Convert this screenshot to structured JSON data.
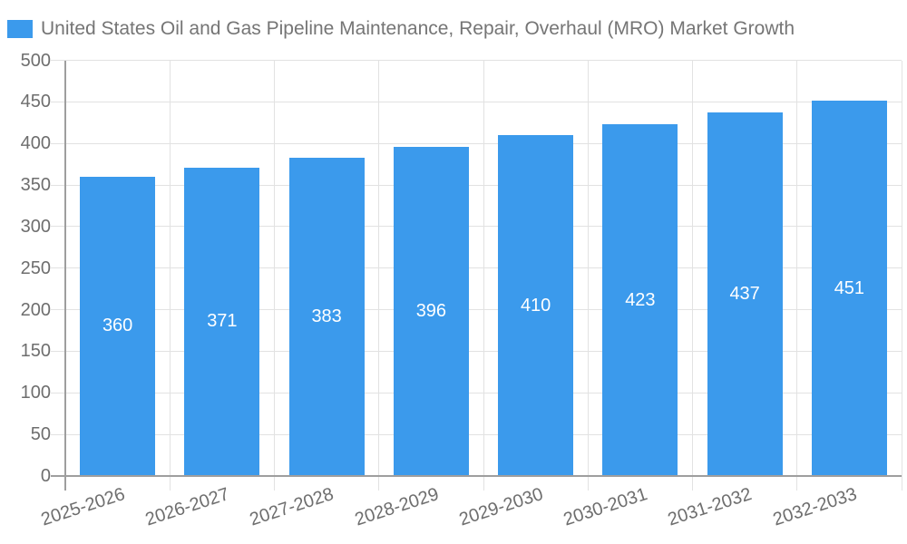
{
  "chart_data": {
    "type": "bar",
    "title": "United States Oil and Gas Pipeline Maintenance, Repair, Overhaul (MRO) Market Growth",
    "categories": [
      "2025-2026",
      "2026-2027",
      "2027-2028",
      "2028-2029",
      "2029-2030",
      "2030-2031",
      "2031-2032",
      "2032-2033"
    ],
    "values": [
      360,
      371,
      383,
      396,
      410,
      423,
      437,
      451
    ],
    "value_labels": [
      "360",
      "371",
      "383",
      "396",
      "410",
      "423",
      "437",
      "451"
    ],
    "xlabel": "",
    "ylabel": "",
    "ylim": [
      0,
      500
    ],
    "y_ticks": [
      0,
      50,
      100,
      150,
      200,
      250,
      300,
      350,
      400,
      450,
      500
    ],
    "grid": true,
    "legend_position": "top-left",
    "colors": {
      "bar": "#3b9aec",
      "grid": "#e2e2e2",
      "axis": "#9e9e9e",
      "tick_text": "#6e6e6e",
      "title_text": "#757575",
      "value_text": "#ffffff",
      "background": "#ffffff"
    }
  }
}
